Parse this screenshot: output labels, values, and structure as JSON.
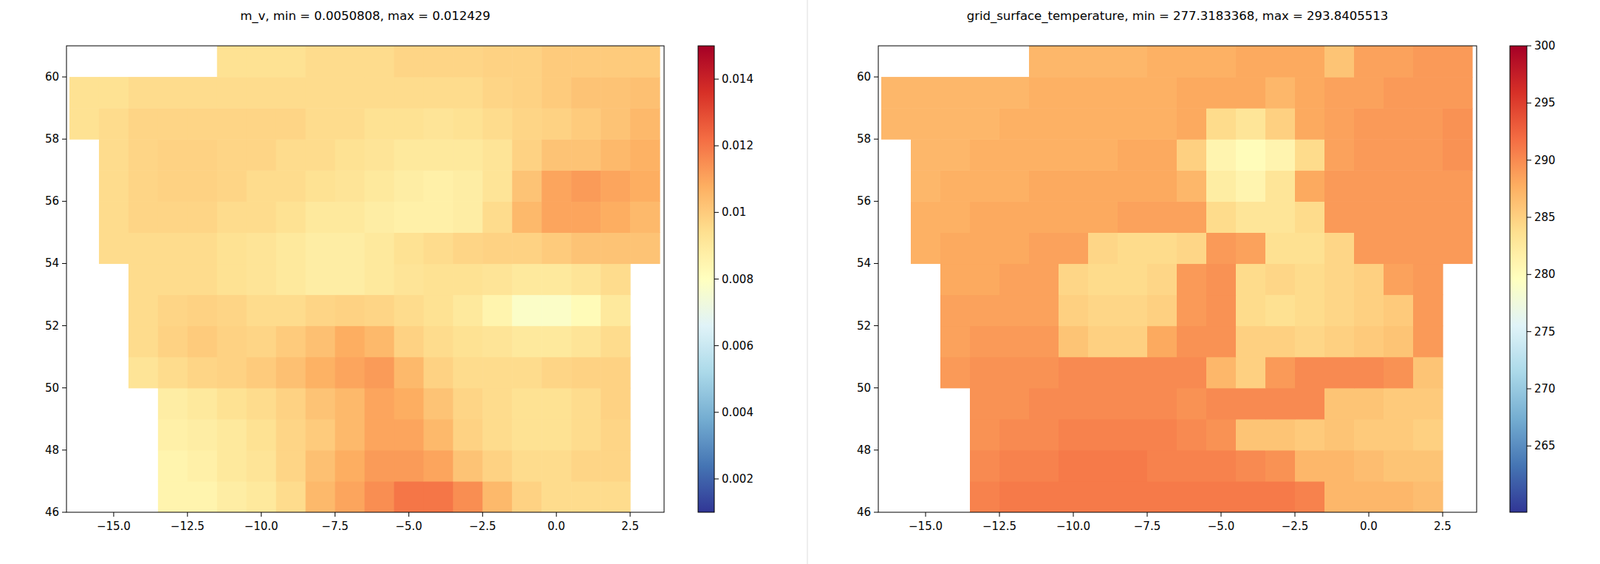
{
  "chart_data": [
    {
      "type": "heatmap",
      "title": "m_v, min = 0.0050808, max = 0.012429",
      "color": "RdYlBu_r",
      "x": [
        -16,
        -15,
        -14,
        -13,
        -12,
        -11,
        -10,
        -9,
        -8,
        -7,
        -6,
        -5,
        -4,
        -3,
        -2,
        -1,
        0,
        1,
        2,
        3
      ],
      "y": [
        46.5,
        47.5,
        48.5,
        49.5,
        50.5,
        51.5,
        52.5,
        53.5,
        54.5,
        55.5,
        56.5,
        57.5,
        58.5,
        59.5,
        60.5
      ],
      "values": [
        [
          null,
          null,
          null,
          0.0085,
          0.0085,
          0.0088,
          0.009,
          0.0095,
          0.0105,
          0.011,
          0.0115,
          0.012,
          0.012,
          0.0115,
          0.0105,
          0.0098,
          0.0095,
          0.0095,
          0.0095,
          null
        ],
        [
          null,
          null,
          null,
          0.0085,
          0.0087,
          0.009,
          0.0092,
          0.0097,
          0.0103,
          0.0108,
          0.0112,
          0.0112,
          0.011,
          0.0102,
          0.0098,
          0.0095,
          0.0095,
          0.0097,
          0.0097,
          null
        ],
        [
          null,
          null,
          null,
          0.0087,
          0.0088,
          0.009,
          0.0093,
          0.0097,
          0.01,
          0.0105,
          0.011,
          0.011,
          0.0105,
          0.0098,
          0.0095,
          0.0093,
          0.0093,
          0.0095,
          0.0097,
          null
        ],
        [
          null,
          null,
          null,
          0.0088,
          0.009,
          0.0093,
          0.0095,
          0.0098,
          0.0102,
          0.0105,
          0.011,
          0.0108,
          0.0102,
          0.0097,
          0.0095,
          0.0093,
          0.0093,
          0.0095,
          0.0098,
          null
        ],
        [
          null,
          null,
          0.0092,
          0.0095,
          0.0097,
          0.0098,
          0.01,
          0.0103,
          0.0107,
          0.011,
          0.0112,
          0.0105,
          0.0098,
          0.0095,
          0.0095,
          0.0095,
          0.0097,
          0.0098,
          0.0098,
          null
        ],
        [
          null,
          null,
          0.0095,
          0.0098,
          0.01,
          0.0098,
          0.0097,
          0.01,
          0.0103,
          0.0108,
          0.0105,
          0.0098,
          0.0095,
          0.0093,
          0.0092,
          0.009,
          0.009,
          0.0092,
          0.0095,
          null
        ],
        [
          null,
          null,
          0.0095,
          0.0097,
          0.0098,
          0.0097,
          0.0095,
          0.0095,
          0.0097,
          0.0098,
          0.0097,
          0.0095,
          0.0093,
          0.009,
          0.0085,
          0.0078,
          0.0078,
          0.0082,
          0.009,
          null
        ],
        [
          null,
          null,
          0.0095,
          0.0095,
          0.0095,
          0.0093,
          0.0092,
          0.009,
          0.0088,
          0.0088,
          0.009,
          0.0092,
          0.0093,
          0.0093,
          0.0092,
          0.009,
          0.009,
          0.0092,
          0.0095,
          null
        ],
        [
          null,
          0.0095,
          0.0095,
          0.0095,
          0.0095,
          0.0093,
          0.0092,
          0.009,
          0.0088,
          0.0088,
          0.009,
          0.0093,
          0.0095,
          0.0097,
          0.0098,
          0.0098,
          0.01,
          0.0102,
          0.0102,
          0.0102
        ],
        [
          null,
          0.0095,
          0.0097,
          0.0097,
          0.0097,
          0.0095,
          0.0095,
          0.0093,
          0.009,
          0.009,
          0.0088,
          0.0087,
          0.0087,
          0.0088,
          0.0095,
          0.0105,
          0.011,
          0.011,
          0.0108,
          0.0105
        ],
        [
          null,
          0.0095,
          0.0097,
          0.0098,
          0.0098,
          0.0097,
          0.0095,
          0.0095,
          0.0093,
          0.0092,
          0.009,
          0.0088,
          0.0087,
          0.0088,
          0.0092,
          0.0102,
          0.011,
          0.0112,
          0.011,
          0.0108
        ],
        [
          null,
          0.0095,
          0.0097,
          0.0098,
          0.0098,
          0.0097,
          0.0097,
          0.0095,
          0.0095,
          0.0093,
          0.0092,
          0.009,
          0.009,
          0.009,
          0.0092,
          0.0098,
          0.0102,
          0.0102,
          0.0105,
          0.0107
        ],
        [
          0.0093,
          0.0095,
          0.0097,
          0.0097,
          0.0097,
          0.0097,
          0.0097,
          0.0097,
          0.0095,
          0.0095,
          0.0093,
          0.0093,
          0.0092,
          0.0093,
          0.0095,
          0.0097,
          0.0098,
          0.01,
          0.0102,
          0.0105
        ],
        [
          0.0093,
          0.0093,
          0.0095,
          0.0095,
          0.0095,
          0.0095,
          0.0095,
          0.0095,
          0.0095,
          0.0095,
          0.0095,
          0.0095,
          0.0095,
          0.0095,
          0.0097,
          0.0098,
          0.01,
          0.0102,
          0.0102,
          0.0103
        ],
        [
          null,
          null,
          null,
          null,
          null,
          0.0093,
          0.0093,
          0.0093,
          0.0095,
          0.0095,
          0.0095,
          0.0097,
          0.0097,
          0.0097,
          0.0098,
          0.0098,
          0.01,
          0.01,
          0.01,
          0.01
        ]
      ],
      "xlim": [
        -16.6,
        3.65
      ],
      "ylim": [
        46,
        61
      ],
      "xticks": [
        {
          "value": -15,
          "label": "−15.0"
        },
        {
          "value": -12.5,
          "label": "−12.5"
        },
        {
          "value": -10,
          "label": "−10.0"
        },
        {
          "value": -7.5,
          "label": "−7.5"
        },
        {
          "value": -5,
          "label": "−5.0"
        },
        {
          "value": -2.5,
          "label": "−2.5"
        },
        {
          "value": 0,
          "label": "0.0"
        },
        {
          "value": 2.5,
          "label": "2.5"
        }
      ],
      "yticks": [
        46,
        48,
        50,
        52,
        54,
        56,
        58,
        60
      ],
      "colorbar": {
        "range": [
          0.001,
          0.015
        ],
        "ticks": [
          0.002,
          0.004,
          0.006,
          0.008,
          0.01,
          0.012,
          0.014
        ]
      }
    },
    {
      "type": "heatmap",
      "title": "grid_surface_temperature, min = 277.3183368, max = 293.8405513",
      "color": "RdYlBu_r",
      "x": [
        -16,
        -15,
        -14,
        -13,
        -12,
        -11,
        -10,
        -9,
        -8,
        -7,
        -6,
        -5,
        -4,
        -3,
        -2,
        -1,
        0,
        1,
        2,
        3
      ],
      "y": [
        46.5,
        47.5,
        48.5,
        49.5,
        50.5,
        51.5,
        52.5,
        53.5,
        54.5,
        55.5,
        56.5,
        57.5,
        58.5,
        59.5,
        60.5
      ],
      "values": [
        [
          null,
          null,
          null,
          290.5,
          291,
          291,
          291,
          291,
          291,
          291,
          291,
          291,
          291,
          291,
          290.5,
          287,
          287,
          287,
          286.5,
          null
        ],
        [
          null,
          null,
          null,
          290,
          290.5,
          290.5,
          291,
          291,
          291,
          290.5,
          290.5,
          290.5,
          290,
          289.5,
          287,
          287,
          286.5,
          286,
          286,
          null
        ],
        [
          null,
          null,
          null,
          289.5,
          290,
          290,
          290.5,
          290.5,
          290.5,
          290.5,
          290,
          289.5,
          286,
          286,
          285.5,
          286,
          285.5,
          285.5,
          285,
          null
        ],
        [
          null,
          null,
          null,
          289.5,
          289.5,
          290,
          290,
          290,
          290,
          290,
          289.5,
          290,
          290,
          290,
          290,
          286,
          286,
          285.5,
          285.5,
          null
        ],
        [
          null,
          null,
          289,
          289.5,
          289.5,
          289.5,
          290,
          290,
          290,
          290,
          290,
          287,
          285,
          289,
          290,
          290,
          290,
          289.5,
          286,
          null
        ],
        [
          null,
          null,
          288.5,
          289,
          289,
          289,
          286,
          285,
          285,
          288,
          289.5,
          289.5,
          285,
          285,
          284.5,
          285,
          285.5,
          286,
          289,
          null
        ],
        [
          null,
          null,
          288.5,
          288.5,
          288.5,
          288.5,
          285,
          284.5,
          284.5,
          285,
          289,
          289.5,
          284,
          283.5,
          284,
          284.5,
          285,
          285.5,
          289,
          null
        ],
        [
          null,
          null,
          288,
          288,
          288.5,
          288.5,
          284.5,
          284,
          284,
          284.5,
          289,
          289.5,
          284,
          284.5,
          284,
          284.5,
          285,
          288.5,
          289,
          null
        ],
        [
          null,
          287.5,
          288,
          288,
          288,
          288.5,
          288.5,
          284.5,
          284,
          284,
          284.5,
          289,
          288.5,
          283.5,
          283.5,
          284.5,
          289,
          289,
          289,
          289
        ],
        [
          null,
          287.5,
          287.5,
          288,
          288,
          288,
          288,
          288,
          288.5,
          288.5,
          288.5,
          284,
          283,
          283,
          284,
          289,
          289,
          289,
          289,
          289
        ],
        [
          null,
          287,
          287.5,
          287.5,
          287.5,
          288,
          288,
          288,
          288,
          288,
          287,
          282,
          281,
          283,
          288,
          289,
          289,
          289,
          289,
          289
        ],
        [
          null,
          287,
          287,
          287.5,
          287.5,
          287.5,
          287.5,
          287.5,
          288,
          288,
          285,
          281,
          280,
          281,
          284,
          288.5,
          289,
          289,
          289,
          289.5
        ],
        [
          287,
          287,
          287,
          287,
          287.5,
          287.5,
          287.5,
          287.5,
          287.5,
          287.5,
          288,
          284,
          283,
          285,
          288,
          288.5,
          289,
          289,
          289,
          289.5
        ],
        [
          287,
          287,
          287,
          287,
          287,
          287.5,
          287.5,
          287.5,
          287.5,
          287.5,
          288,
          288,
          288,
          287,
          288,
          288.5,
          288.5,
          289,
          289,
          289
        ],
        [
          null,
          null,
          null,
          null,
          null,
          287,
          287,
          287,
          287,
          287.5,
          287.5,
          287.5,
          288,
          288,
          288,
          286,
          288.5,
          288.5,
          289,
          289
        ]
      ],
      "xlim": [
        -16.6,
        3.65
      ],
      "ylim": [
        46,
        61
      ],
      "xticks": [
        {
          "value": -15,
          "label": "−15.0"
        },
        {
          "value": -12.5,
          "label": "−12.5"
        },
        {
          "value": -10,
          "label": "−10.0"
        },
        {
          "value": -7.5,
          "label": "−7.5"
        },
        {
          "value": -5,
          "label": "−5.0"
        },
        {
          "value": -2.5,
          "label": "−2.5"
        },
        {
          "value": 0,
          "label": "0.0"
        },
        {
          "value": 2.5,
          "label": "2.5"
        }
      ],
      "yticks": [
        46,
        48,
        50,
        52,
        54,
        56,
        58,
        60
      ],
      "colorbar": {
        "range": [
          259.2,
          300
        ],
        "ticks": [
          265,
          270,
          275,
          280,
          285,
          290,
          295,
          300
        ]
      }
    }
  ]
}
